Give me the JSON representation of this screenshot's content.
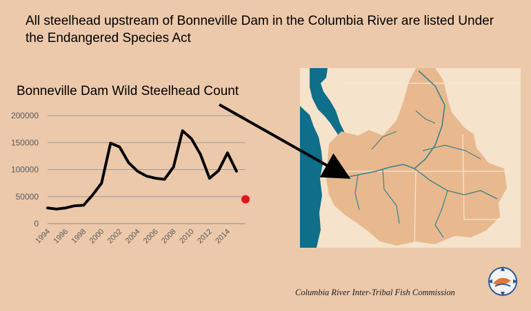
{
  "slide": {
    "title": "All steelhead upstream of Bonneville Dam in the Columbia River are listed Under the Endangered Species Act",
    "footer": "Columbia River Inter-Tribal Fish Commission"
  },
  "colors": {
    "background": "#ecc9ab",
    "line": "#000000",
    "highlight_point": "#e0161b",
    "map_land": "#e8b98e",
    "map_water": "#0f6e89",
    "map_background": "#f5e3cc"
  },
  "chart_data": {
    "type": "line",
    "title": "Bonneville Dam Wild Steelhead Count",
    "xlabel": "",
    "ylabel": "",
    "x": [
      1994,
      1995,
      1996,
      1997,
      1998,
      1999,
      2000,
      2001,
      2002,
      2003,
      2004,
      2005,
      2006,
      2007,
      2008,
      2009,
      2010,
      2011,
      2012,
      2013,
      2014,
      2015
    ],
    "series": [
      {
        "values": [
          29000,
          27000,
          29000,
          33000,
          34000,
          53000,
          75000,
          149000,
          142000,
          113000,
          97000,
          88000,
          84000,
          82000,
          105000,
          172000,
          157000,
          128000,
          84000,
          98000,
          131000,
          97000
        ]
      }
    ],
    "highlight_points": [
      {
        "x": 2016,
        "y": 45000,
        "color": "#e0161b"
      }
    ],
    "yticks": [
      0,
      50000,
      100000,
      150000,
      200000
    ],
    "ytick_labels": [
      "0",
      "50000",
      "100000",
      "150000",
      "200000"
    ],
    "xtick_labels": [
      "1994",
      "1996",
      "1998",
      "2000",
      "2002",
      "2004",
      "2006",
      "2008",
      "2010",
      "2012",
      "2014"
    ],
    "ylim": [
      0,
      200000
    ],
    "grid": true,
    "legend": "none"
  },
  "map": {
    "description_icon": "columbia-basin-map"
  },
  "logo": {
    "icon": "critfc-logo-icon"
  }
}
